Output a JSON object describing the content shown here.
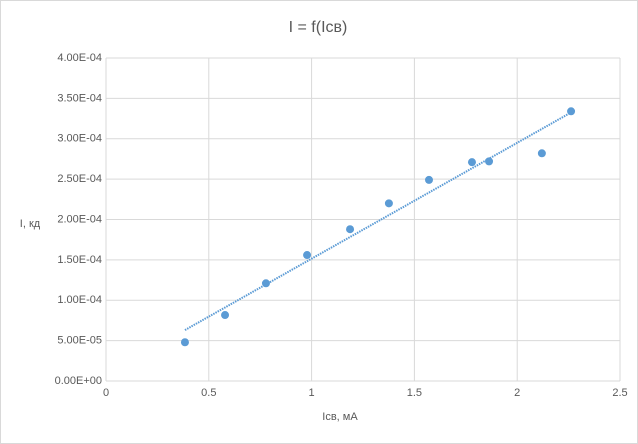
{
  "chart_data": {
    "type": "scatter",
    "title": "I = f(Iсв)",
    "x_label": "Iсв, мА",
    "y_label": "I, кд",
    "series": [
      {
        "name": "I",
        "color": "#5b9bd5",
        "x": [
          0.384,
          0.579,
          0.778,
          0.978,
          1.187,
          1.376,
          1.571,
          1.78,
          1.863,
          2.12,
          2.262
        ],
        "values": [
          4.8e-05,
          8.17e-05,
          0.000121,
          0.000156,
          0.000188,
          0.00022,
          0.000249,
          0.000271,
          0.000272,
          0.000282,
          0.000334
        ]
      }
    ],
    "trendline": "linear",
    "xlim": [
      0,
      2.5
    ],
    "xticks": [
      0,
      0.5,
      1,
      1.5,
      2,
      2.5
    ],
    "ylim": [
      0,
      0.0004
    ],
    "yticks": [
      {
        "value": 0,
        "label": "0.00E+00"
      },
      {
        "value": 5e-05,
        "label": "5.00E-05"
      },
      {
        "value": 0.0001,
        "label": "1.00E-04"
      },
      {
        "value": 0.00015,
        "label": "1.50E-04"
      },
      {
        "value": 0.0002,
        "label": "2.00E-04"
      },
      {
        "value": 0.00025,
        "label": "2.50E-04"
      },
      {
        "value": 0.0003,
        "label": "3.00E-04"
      },
      {
        "value": 0.00035,
        "label": "3.50E-04"
      },
      {
        "value": 0.0004,
        "label": "4.00E-04"
      }
    ],
    "grid": true
  }
}
